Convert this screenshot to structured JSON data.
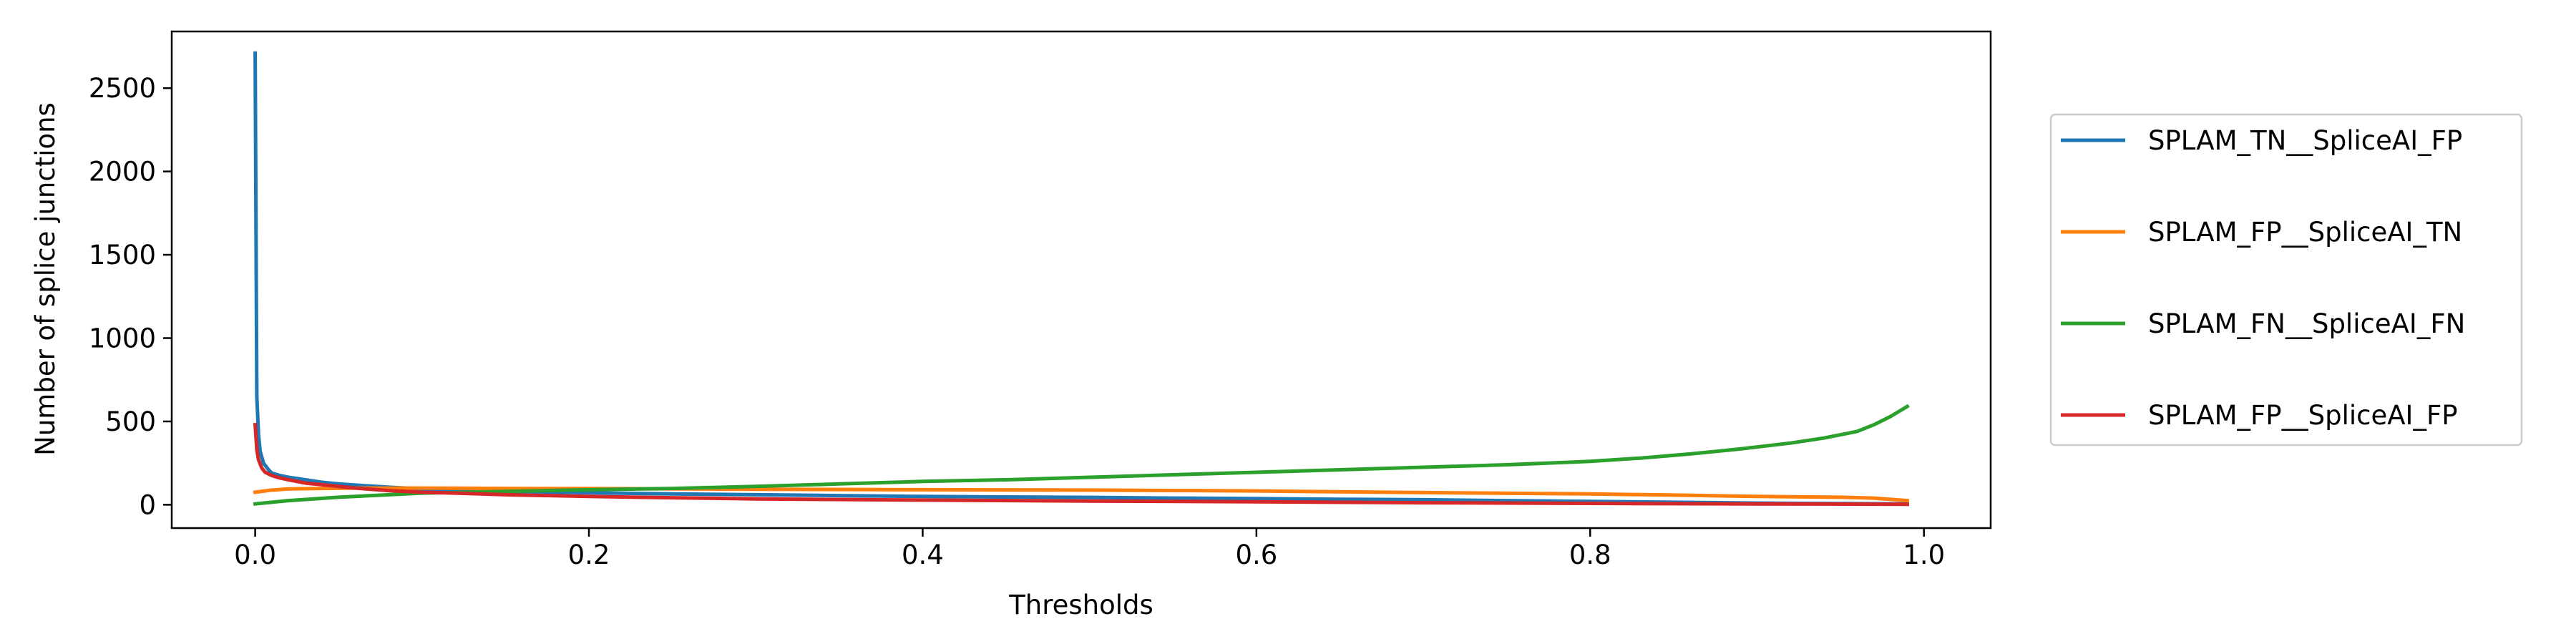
{
  "chart_data": {
    "type": "line",
    "title": "",
    "xlabel": "Thresholds",
    "ylabel": "Number of splice junctions",
    "xlim": [
      -0.05,
      1.04
    ],
    "ylim": [
      -140,
      2840
    ],
    "xticks": [
      0.0,
      0.2,
      0.4,
      0.6,
      0.8,
      1.0
    ],
    "xtick_labels": [
      "0.0",
      "0.2",
      "0.4",
      "0.6",
      "0.8",
      "1.0"
    ],
    "yticks": [
      0,
      500,
      1000,
      1500,
      2000,
      2500
    ],
    "ytick_labels": [
      "0",
      "500",
      "1000",
      "1500",
      "2000",
      "2500"
    ],
    "grid": false,
    "legend_position": "right",
    "series": [
      {
        "name": "SPLAM_TN__SpliceAI_FP",
        "color": "#1f77b4",
        "x": [
          0.0,
          0.001,
          0.002,
          0.003,
          0.005,
          0.008,
          0.01,
          0.015,
          0.02,
          0.03,
          0.04,
          0.05,
          0.06,
          0.08,
          0.1,
          0.12,
          0.15,
          0.2,
          0.25,
          0.3,
          0.35,
          0.4,
          0.45,
          0.5,
          0.55,
          0.6,
          0.65,
          0.7,
          0.75,
          0.8,
          0.85,
          0.9,
          0.95,
          0.99
        ],
        "y": [
          2710,
          650,
          420,
          320,
          250,
          210,
          190,
          175,
          165,
          150,
          135,
          125,
          118,
          105,
          95,
          88,
          80,
          72,
          65,
          60,
          55,
          50,
          47,
          44,
          40,
          37,
          33,
          30,
          25,
          20,
          15,
          10,
          7,
          5
        ]
      },
      {
        "name": "SPLAM_FP__SpliceAI_TN",
        "color": "#ff7f0e",
        "x": [
          0.0,
          0.01,
          0.02,
          0.04,
          0.06,
          0.08,
          0.1,
          0.15,
          0.2,
          0.3,
          0.4,
          0.5,
          0.6,
          0.7,
          0.8,
          0.85,
          0.9,
          0.95,
          0.97,
          0.99
        ],
        "y": [
          75,
          88,
          95,
          98,
          100,
          100,
          100,
          98,
          97,
          93,
          90,
          88,
          83,
          73,
          65,
          58,
          50,
          45,
          40,
          25
        ]
      },
      {
        "name": "SPLAM_FN__SpliceAI_FN",
        "color": "#2ca02c",
        "x": [
          0.0,
          0.02,
          0.05,
          0.1,
          0.15,
          0.2,
          0.25,
          0.3,
          0.35,
          0.4,
          0.45,
          0.5,
          0.55,
          0.6,
          0.65,
          0.7,
          0.75,
          0.8,
          0.83,
          0.86,
          0.89,
          0.92,
          0.94,
          0.96,
          0.97,
          0.98,
          0.99
        ],
        "y": [
          5,
          25,
          45,
          70,
          80,
          90,
          98,
          110,
          125,
          140,
          150,
          165,
          180,
          195,
          210,
          225,
          240,
          260,
          280,
          305,
          335,
          370,
          400,
          440,
          480,
          530,
          590
        ]
      },
      {
        "name": "SPLAM_FP__SpliceAI_FP",
        "color": "#d62728",
        "x": [
          0.0,
          0.001,
          0.002,
          0.004,
          0.006,
          0.01,
          0.015,
          0.02,
          0.03,
          0.04,
          0.06,
          0.08,
          0.1,
          0.12,
          0.15,
          0.2,
          0.25,
          0.3,
          0.4,
          0.5,
          0.6,
          0.7,
          0.8,
          0.9,
          0.99
        ],
        "y": [
          480,
          330,
          270,
          220,
          195,
          175,
          160,
          150,
          130,
          120,
          100,
          85,
          75,
          70,
          60,
          50,
          42,
          35,
          28,
          22,
          18,
          12,
          8,
          5,
          3
        ]
      }
    ]
  }
}
